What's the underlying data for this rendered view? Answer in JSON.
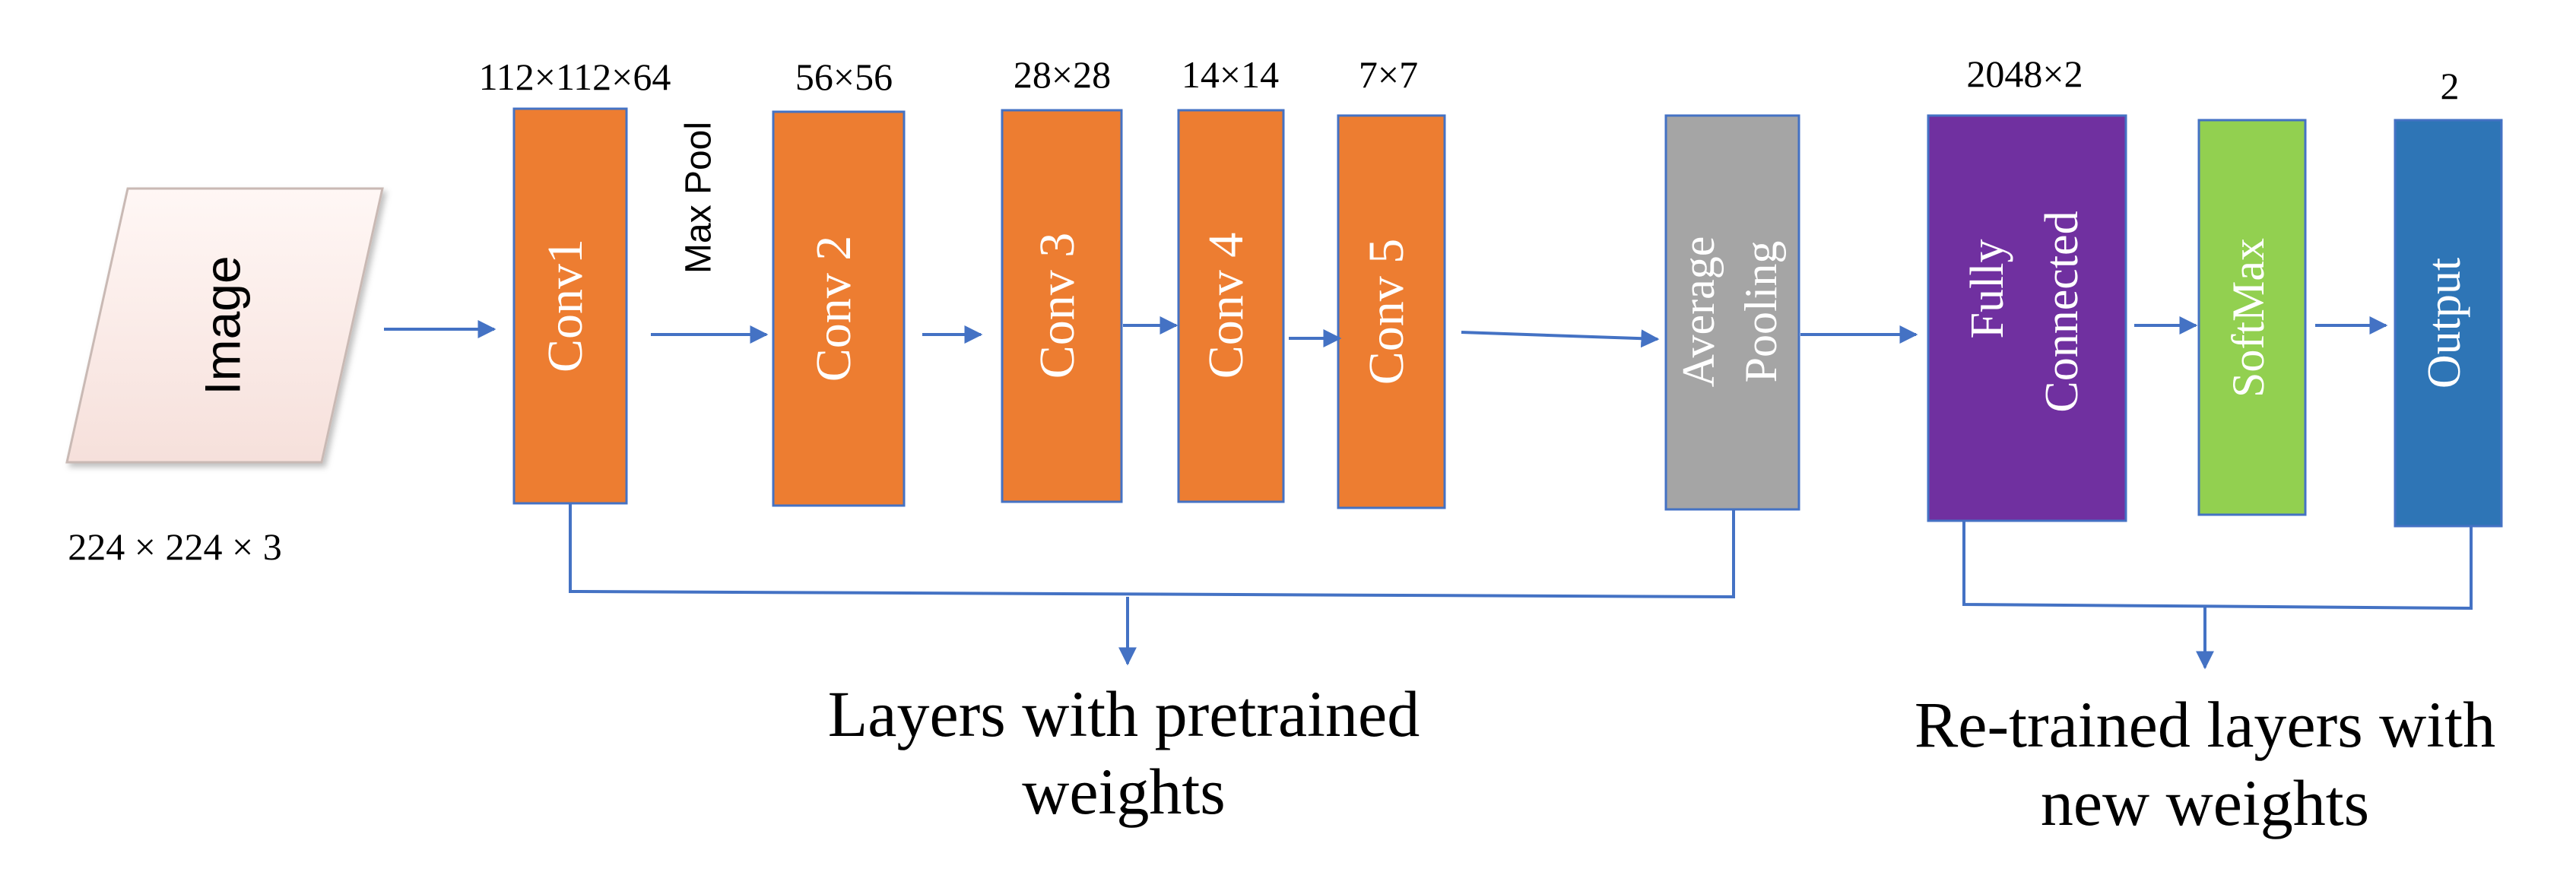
{
  "input": {
    "label": "Image",
    "size": "224 × 224 × 3"
  },
  "blocks": {
    "conv1": {
      "label": "Conv1",
      "dims": "112×112×64",
      "color": "#ED7D31"
    },
    "maxpool": {
      "label": "Max Pool"
    },
    "conv2": {
      "label": "Conv 2",
      "dims": "56×56",
      "color": "#ED7D31"
    },
    "conv3": {
      "label": "Conv 3",
      "dims": "28×28",
      "color": "#ED7D31"
    },
    "conv4": {
      "label": "Conv 4",
      "dims": "14×14",
      "color": "#ED7D31"
    },
    "conv5": {
      "label": "Conv 5",
      "dims": "7×7",
      "color": "#ED7D31"
    },
    "avgpool": {
      "line1": "Average",
      "line2": "Pooling",
      "color": "#A5A5A5"
    },
    "fc": {
      "line1": "Fully",
      "line2": "Connected",
      "dims": "2048×2",
      "color": "#7030A0"
    },
    "softmax": {
      "label": "SoftMax",
      "color": "#92D050"
    },
    "output": {
      "label": "Output",
      "dims": "2",
      "color": "#2E75B6"
    }
  },
  "groups": {
    "pretrained": {
      "line1": "Layers with pretrained",
      "line2": "weights"
    },
    "retrained": {
      "line1": "Re-trained layers with",
      "line2": "new weights"
    }
  },
  "colors": {
    "arrow": "#4472C4",
    "border": "#4472C4",
    "image_fill": "#FCEDEA",
    "block_text": "#ffffff"
  }
}
